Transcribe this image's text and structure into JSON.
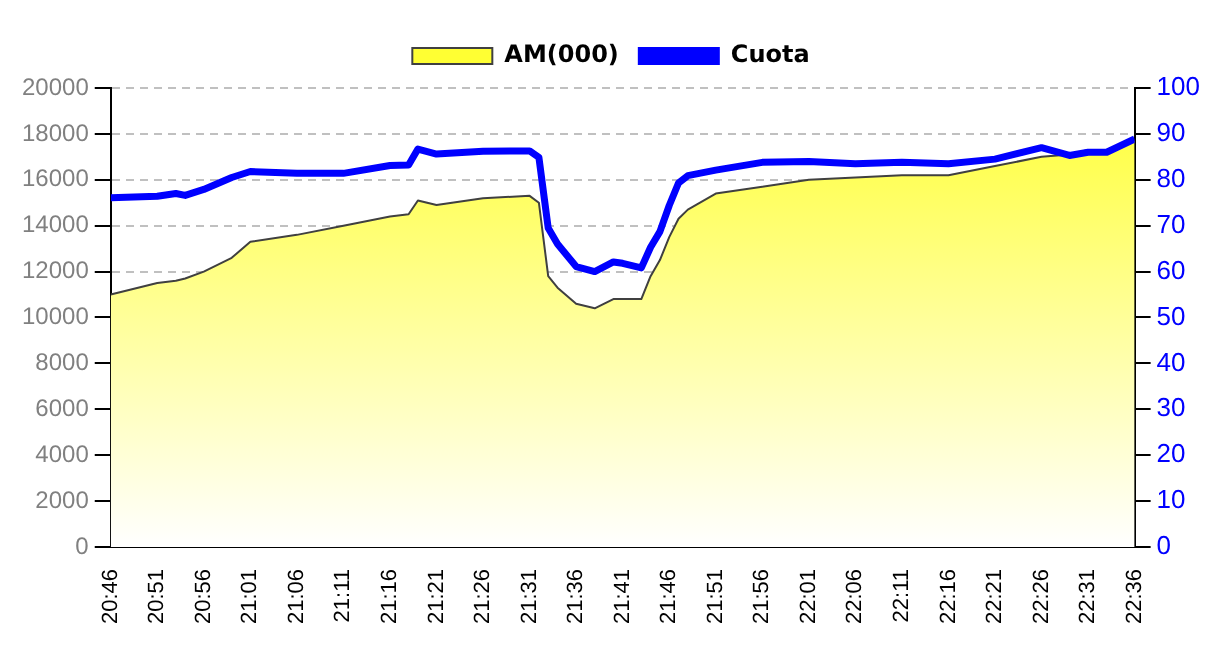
{
  "chart_data": {
    "type": "area",
    "x": [
      20.7667,
      20.85,
      20.8833,
      20.9,
      20.9333,
      20.9833,
      21.0167,
      21.1,
      21.1833,
      21.2667,
      21.3,
      21.3167,
      21.35,
      21.4333,
      21.5167,
      21.5333,
      21.55,
      21.5667,
      21.6,
      21.6333,
      21.6667,
      21.6833,
      21.7167,
      21.7333,
      21.75,
      21.7667,
      21.7833,
      21.8,
      21.85,
      21.9333,
      22.0167,
      22.1,
      22.1833,
      22.2667,
      22.35,
      22.4333,
      22.4833,
      22.5167,
      22.55,
      22.6
    ],
    "series": [
      {
        "name": "AM(000)",
        "color": "#ffff33",
        "values": [
          11000,
          11500,
          11600,
          11700,
          12000,
          12600,
          13300,
          13600,
          14000,
          14400,
          14500,
          15100,
          14900,
          15200,
          15300,
          15000,
          11800,
          11300,
          10600,
          10400,
          10800,
          10800,
          10800,
          11800,
          12500,
          13500,
          14300,
          14700,
          15400,
          15700,
          16000,
          16100,
          16200,
          16200,
          16600,
          17000,
          17100,
          17300,
          17300,
          17700
        ]
      },
      {
        "name": "Cuota",
        "type": "line",
        "axis": "y2",
        "color": "#0000ff",
        "values": [
          76.1,
          76.4,
          77.0,
          76.6,
          77.9,
          80.5,
          81.8,
          81.4,
          81.4,
          83.1,
          83.2,
          86.7,
          85.6,
          86.2,
          86.3,
          84.9,
          69.5,
          66,
          61.1,
          60,
          62.1,
          61.8,
          60.8,
          65.3,
          68.7,
          74.4,
          79.3,
          80.9,
          82.1,
          83.8,
          84,
          83.5,
          83.8,
          83.5,
          84.5,
          87,
          85.3,
          86,
          86,
          88.9
        ]
      }
    ],
    "xlim": [
      20.7667,
      22.6
    ],
    "xticks": [
      {
        "value": 20.7667,
        "label": "20:46"
      },
      {
        "value": 20.85,
        "label": "20:51"
      },
      {
        "value": 20.9333,
        "label": "20:56"
      },
      {
        "value": 21.0167,
        "label": "21:01"
      },
      {
        "value": 21.1,
        "label": "21:06"
      },
      {
        "value": 21.1833,
        "label": "21:11"
      },
      {
        "value": 21.2667,
        "label": "21:16"
      },
      {
        "value": 21.35,
        "label": "21:21"
      },
      {
        "value": 21.4333,
        "label": "21:26"
      },
      {
        "value": 21.5167,
        "label": "21:31"
      },
      {
        "value": 21.6,
        "label": "21:36"
      },
      {
        "value": 21.6833,
        "label": "21:41"
      },
      {
        "value": 21.7667,
        "label": "21:46"
      },
      {
        "value": 21.85,
        "label": "21:51"
      },
      {
        "value": 21.9333,
        "label": "21:56"
      },
      {
        "value": 22.0167,
        "label": "22:01"
      },
      {
        "value": 22.1,
        "label": "22:06"
      },
      {
        "value": 22.1833,
        "label": "22:11"
      },
      {
        "value": 22.2667,
        "label": "22:16"
      },
      {
        "value": 22.35,
        "label": "22:21"
      },
      {
        "value": 22.4333,
        "label": "22:26"
      },
      {
        "value": 22.5167,
        "label": "22:31"
      },
      {
        "value": 22.6,
        "label": "22:36"
      }
    ],
    "ylim": [
      0,
      20000
    ],
    "yticks": [
      0,
      2000,
      4000,
      6000,
      8000,
      10000,
      12000,
      14000,
      16000,
      18000,
      20000
    ],
    "y2lim": [
      0,
      100
    ],
    "y2ticks": [
      0,
      10,
      20,
      30,
      40,
      50,
      60,
      70,
      80,
      90,
      100
    ],
    "grid": "y",
    "legend": "top",
    "marker": "none",
    "line_style": "solid"
  }
}
